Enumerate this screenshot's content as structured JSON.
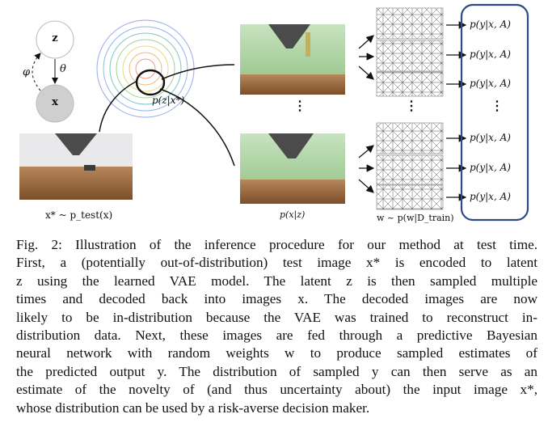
{
  "figure": {
    "node_z": "z",
    "node_x": "x",
    "edge_theta": "θ",
    "edge_phi": "φ",
    "posterior_label": "p(z|x*)",
    "input_label": "x* ~ p_test(x)",
    "decoded_label": "p(x|z)",
    "weights_label": "w ~ p(w|D_train)",
    "output_label": "p(y|x, A)",
    "vertical_ellipsis": "⋮"
  },
  "caption": {
    "lines": [
      "Fig. 2: Illustration of the inference procedure for our method at test time.",
      "First, a (potentially out-of-distribution) test image x* is encoded to latent",
      "z using the learned VAE model. The latent z is then sampled multiple",
      "times and decoded back into images x. The decoded images are now",
      "likely to be in-distribution because the VAE was trained to reconstruct in-",
      "distribution data. Next, these images are fed through a predictive Bayesian",
      "neural network with random weights w to produce sampled estimates of",
      "the predicted output y. The distribution of sampled y can then serve as an",
      "estimate of the novelty of (and thus uncertainty about) the input image x*,",
      "whose distribution can be used by a risk-averse decision maker."
    ]
  },
  "colors": {
    "output_box_border": "#2f4a86",
    "node_x_fill": "#cfcfcf",
    "road_brown": "#8a5a2b",
    "grass_green": "#9fc98e"
  }
}
